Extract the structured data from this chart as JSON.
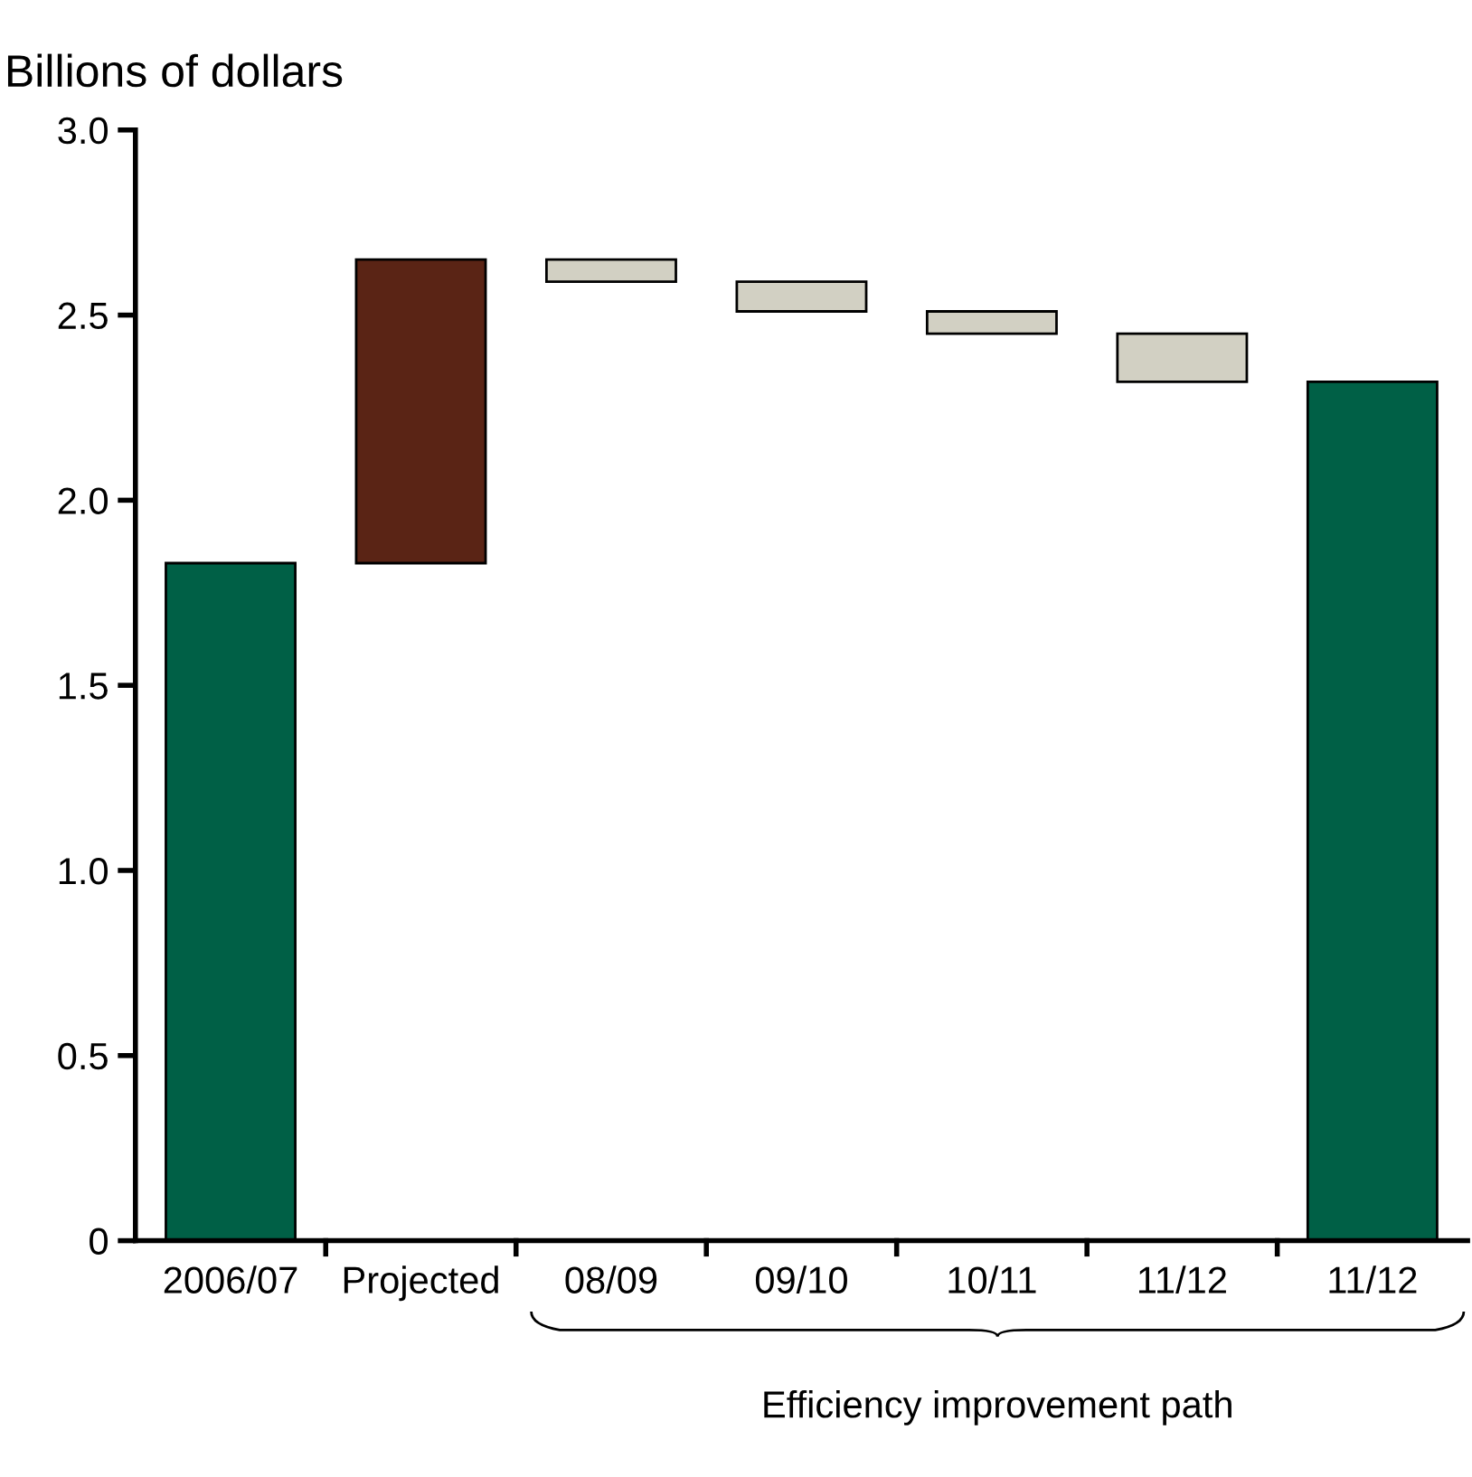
{
  "chart_data": {
    "type": "bar",
    "ylabel": "Billions of dollars",
    "categories": [
      "2006/07",
      "Projected",
      "08/09",
      "09/10",
      "10/11",
      "11/12",
      "11/12"
    ],
    "values": [
      1.83,
      0.82,
      0.06,
      0.08,
      0.06,
      0.13,
      2.32
    ],
    "base": [
      0,
      1.83,
      2.59,
      2.51,
      2.45,
      2.32,
      0
    ],
    "colors": [
      "#006046",
      "#5a2415",
      "#d2d0c3",
      "#d2d0c3",
      "#d2d0c3",
      "#d2d0c3",
      "#006046"
    ],
    "ylim": [
      0,
      3.0
    ],
    "yticks": [
      0,
      0.5,
      {
        "value": 1,
        "label": "1.0"
      },
      1.5,
      {
        "value": 2,
        "label": "2.0"
      },
      2.5,
      {
        "value": 3,
        "label": "3.0"
      }
    ],
    "annotations": [
      "Efficiency improvement path"
    ],
    "grid": false,
    "legend": false
  }
}
